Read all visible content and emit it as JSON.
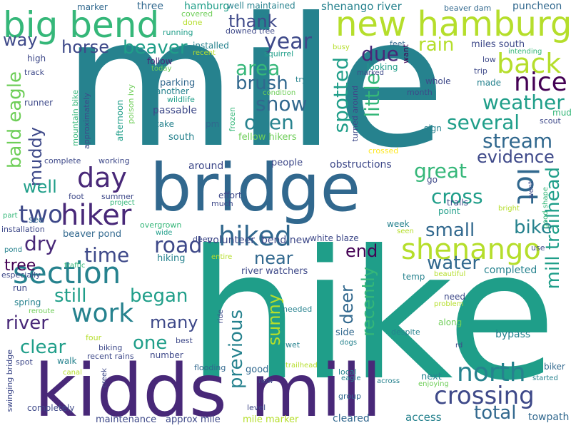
{
  "palette": {
    "background": "#ffffff",
    "dark_purple": "#440154",
    "indigo": "#482878",
    "blue": "#3e4989",
    "slate_blue": "#31688e",
    "teal_blue": "#26828e",
    "teal": "#1f9e89",
    "sea_green": "#35b779",
    "green": "#6ece58",
    "lime": "#b5de2b",
    "yellow": "#fde725"
  },
  "words": {
    "mile": "mile",
    "hike": "hike",
    "bridge": "bridge",
    "kidds_mill": "kidds mill",
    "big_bend": "big bend",
    "new_hamburg": "new hamburg",
    "section": "section",
    "hiker": "hiker",
    "hiked": "hiked",
    "shenango": "shenango",
    "north": "north",
    "crossing": "crossing",
    "work": "work",
    "day": "day",
    "two": "two",
    "lot": "lot",
    "back": "back",
    "nice": "nice",
    "weather": "weather",
    "several": "several",
    "stream": "stream",
    "evidence": "evidence",
    "mill_trailhead": "mill trailhead",
    "bald_eagle": "bald eagle",
    "muddy": "muddy",
    "year": "year",
    "area": "area",
    "brush": "brush",
    "snow": "snow",
    "open": "open",
    "spotted": "spotted",
    "little": "little",
    "due": "due",
    "rain": "rain",
    "beaver": "beaver",
    "horse": "horse",
    "thank": "thank",
    "way": "way",
    "great": "great",
    "cross": "cross",
    "bike": "bike",
    "small": "small",
    "dry": "dry",
    "time": "time",
    "road": "road",
    "still": "still",
    "began": "began",
    "many": "many",
    "well": "well",
    "end": "end",
    "water": "water",
    "near": "near",
    "previous": "previous",
    "sunny": "sunny",
    "deer": "deer",
    "recently": "recently",
    "river": "river",
    "clear": "clear",
    "one": "one",
    "tree": "tree",
    "total": "total",
    "marker": "marker",
    "three": "three",
    "hamburg": "hamburg",
    "covered": "covered",
    "done": "done",
    "running": "running",
    "well_maintained": "well maintained",
    "downed_tree": "downed tree",
    "shenango_river": "shenango river",
    "beaver_dam": "beaver dam",
    "puncheon": "puncheon",
    "feet": "feet",
    "want": "want",
    "miles_south": "miles south",
    "installed": "installed",
    "recent": "recent",
    "squirrel": "squirrel",
    "busy": "busy",
    "high": "high",
    "track": "track",
    "follow": "follow",
    "today": "today",
    "try": "try",
    "looking": "looking",
    "marked": "marked",
    "low": "low",
    "intending": "intending",
    "trip": "trip",
    "made": "made",
    "runner": "runner",
    "mountain_bike": "mountain bike",
    "approximately": "approximately",
    "afternoon": "afternoon",
    "poison_ivy": "poison ivy",
    "parking": "parking",
    "another": "another",
    "wildlife": "wildlife",
    "pm": "pm",
    "condition": "condition",
    "frozen": "frozen",
    "turned_around": "turned around",
    "whole": "whole",
    "month": "month",
    "passable": "passable",
    "take": "take",
    "south": "south",
    "fellow_hikers": "fellow hikers",
    "sign": "sign",
    "mud": "mud",
    "scout": "scout",
    "crossed": "crossed",
    "complete": "complete",
    "working": "working",
    "around": "around",
    "people": "people",
    "obstructions": "obstructions",
    "project": "project",
    "foot": "foot",
    "summer": "summer",
    "effort": "effort",
    "much": "much",
    "trails": "trails",
    "go": "go",
    "good_shape": "good shape",
    "went": "went",
    "bright": "bright",
    "point": "point",
    "part": "part",
    "see": "see",
    "installation": "installation",
    "beaver_pond": "beaver pond",
    "overgrown": "overgrown",
    "volunteer": "volunteer",
    "bend_new": "bend new",
    "week": "week",
    "seen": "seen",
    "wide": "wide",
    "deep": "deep",
    "white_blaze": "white blaze",
    "use": "use",
    "pond": "pond",
    "traffic": "traffic",
    "hiking": "hiking",
    "entire": "entire",
    "especially": "especially",
    "river_watchers": "river watchers",
    "completed": "completed",
    "beautiful": "beautiful",
    "temp": "temp",
    "run": "run",
    "spring": "spring",
    "reroute": "reroute",
    "needed": "needed",
    "need": "need",
    "problem": "problem",
    "ride": "ride",
    "along": "along",
    "side": "side",
    "despite": "despite",
    "bypass": "bypass",
    "dogs": "dogs",
    "four": "four",
    "best": "best",
    "wet": "wet",
    "rd": "rd",
    "biking": "biking",
    "recent_rains": "recent rains",
    "number": "number",
    "walk": "walk",
    "spot": "spot",
    "swinging_bridge": "swinging bridge",
    "canal": "canal",
    "creek": "creek",
    "flooding": "flooding",
    "trailhead": "trailhead",
    "local": "local",
    "eagle": "eagle",
    "biker": "biker",
    "next": "next",
    "enjoying": "enjoying",
    "started": "started",
    "good": "good",
    "now": "now",
    "across": "across",
    "group": "group",
    "completely": "completely",
    "level": "level",
    "maintenance": "maintenance",
    "approx_mile": "approx mile",
    "mile_marker": "mile marker",
    "cleared": "cleared",
    "access": "access",
    "towpath": "towpath"
  }
}
